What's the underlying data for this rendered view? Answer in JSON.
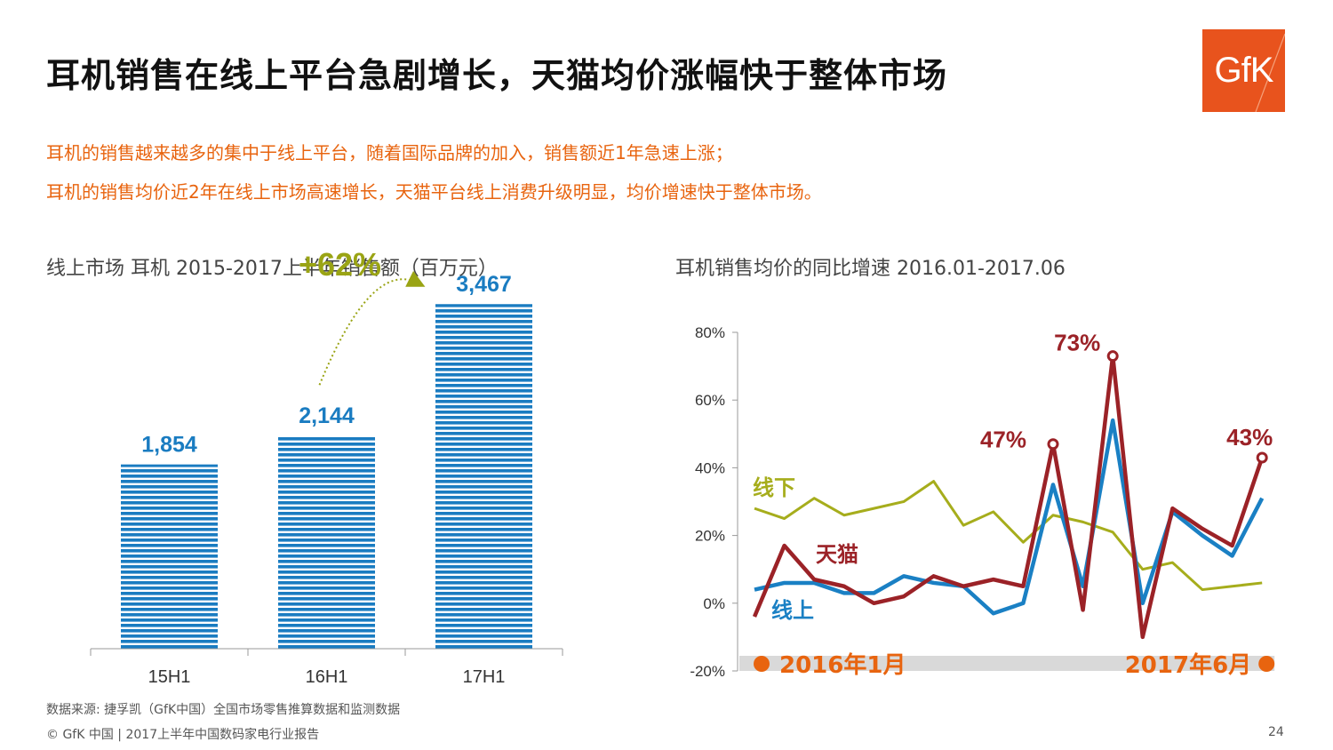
{
  "title": "耳机销售在线上平台急剧增长，天猫均价涨幅快于整体市场",
  "logo_text": "GfK",
  "summary": [
    "耳机的销售越来越多的集中于线上平台，随着国际品牌的加入，销售额近1年急速上涨；",
    "耳机的销售均价近2年在线上市场高速增长，天猫平台线上消费升级明显，均价增速快于整体市场。"
  ],
  "colors": {
    "orange": "#e8640f",
    "bar_blue": "#1a7cc1",
    "online_blue": "#1a80c4",
    "tmall_red": "#9b2227",
    "offline_green": "#a6ad1c",
    "growth_green": "#9aa414"
  },
  "chart_data": [
    {
      "type": "bar",
      "title": "线上市场 耳机 2015-2017上半年销售额（百万元）",
      "categories": [
        "15H1",
        "16H1",
        "17H1"
      ],
      "values": [
        1854,
        2144,
        3467
      ],
      "value_labels": [
        "1,854",
        "2,144",
        "3,467"
      ],
      "ylim": [
        0,
        3800
      ],
      "annotation": "+62%"
    },
    {
      "type": "line",
      "title": "耳机销售均价的同比增速 2016.01-2017.06",
      "ylim": [
        -20,
        80
      ],
      "yticks": [
        "-20%",
        "0%",
        "20%",
        "40%",
        "60%",
        "80%"
      ],
      "ytick_values": [
        -20,
        0,
        20,
        40,
        60,
        80
      ],
      "n_points": 18,
      "series": [
        {
          "name": "线下",
          "values": [
            28,
            25,
            31,
            26,
            28,
            30,
            36,
            23,
            27,
            18,
            26,
            24,
            21,
            10,
            12,
            4,
            5,
            6
          ]
        },
        {
          "name": "线上",
          "values": [
            4,
            6,
            6,
            3,
            3,
            8,
            6,
            5,
            -3,
            0,
            35,
            5,
            54,
            0,
            27,
            20,
            14,
            31
          ]
        },
        {
          "name": "天猫",
          "values": [
            -4,
            17,
            7,
            5,
            0,
            2,
            8,
            5,
            7,
            5,
            47,
            -2,
            73,
            -10,
            28,
            22,
            17,
            43
          ]
        }
      ],
      "point_labels": [
        {
          "series": "天猫",
          "index": 10,
          "text": "47%"
        },
        {
          "series": "天猫",
          "index": 12,
          "text": "73%"
        },
        {
          "series": "天猫",
          "index": 17,
          "text": "43%"
        }
      ],
      "start_label": "2016年1月",
      "end_label": "2017年6月"
    }
  ],
  "footer": {
    "source": "数据来源: 捷孚凯（GfK中国）全国市场零售推算数据和监测数据",
    "copyright": "© GfK 中国 | 2017上半年中国数码家电行业报告",
    "page": "24"
  }
}
